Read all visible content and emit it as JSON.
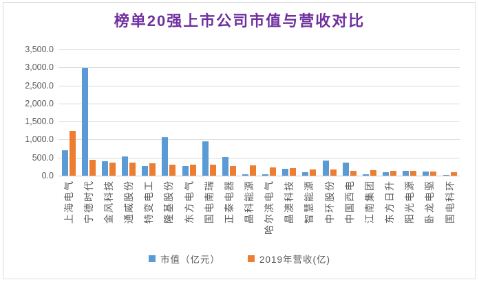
{
  "title": "榜单20强上市公司市值与营收对比",
  "colors": {
    "title": "#7030A0",
    "market_cap_series": "#5B9BD5",
    "revenue_series": "#ED7D31",
    "gridline": "#D9D9D9",
    "axis_text": "#595959",
    "frame_border": "#DCDCDC"
  },
  "legend": {
    "items": [
      {
        "label": "市值（亿元）",
        "color": "#5B9BD5"
      },
      {
        "label": "2019年营收(亿)",
        "color": "#ED7D31"
      }
    ]
  },
  "y_axis": {
    "tick_labels_top_to_bottom": [
      "3,500.0",
      "3,000.0",
      "2,500.0",
      "2,000.0",
      "1,500.0",
      "1,000.0",
      "500.0",
      "0.0"
    ]
  },
  "chart_data": {
    "type": "bar",
    "title": "榜单20强上市公司市值与营收对比",
    "categories": [
      "上海电气",
      "宁德时代",
      "金风科技",
      "通威股份",
      "特变电工",
      "隆基股份",
      "东方电气",
      "国电南瑞",
      "正泰电器",
      "晶科能源",
      "哈尔滨电气",
      "晶澳科技",
      "智慧能源",
      "中环股份",
      "中国西电",
      "江南集团",
      "东方日升",
      "阳光电源",
      "卧龙电驱",
      "国电科环"
    ],
    "series": [
      {
        "name": "市值（亿元）",
        "color": "#5B9BD5",
        "values": [
          705,
          2985,
          400,
          530,
          270,
          1070,
          270,
          960,
          515,
          45,
          40,
          195,
          90,
          420,
          355,
          30,
          95,
          130,
          120,
          20
        ]
      },
      {
        "name": "2019年营收(亿)",
        "color": "#ED7D31",
        "values": [
          1240,
          445,
          365,
          370,
          345,
          310,
          305,
          300,
          270,
          285,
          225,
          205,
          180,
          165,
          140,
          145,
          130,
          125,
          115,
          95
        ]
      }
    ],
    "xlabel": "",
    "ylabel": "",
    "ylim": [
      0,
      3500
    ],
    "ytick_interval": 500,
    "grid": true,
    "legend_position": "bottom"
  }
}
